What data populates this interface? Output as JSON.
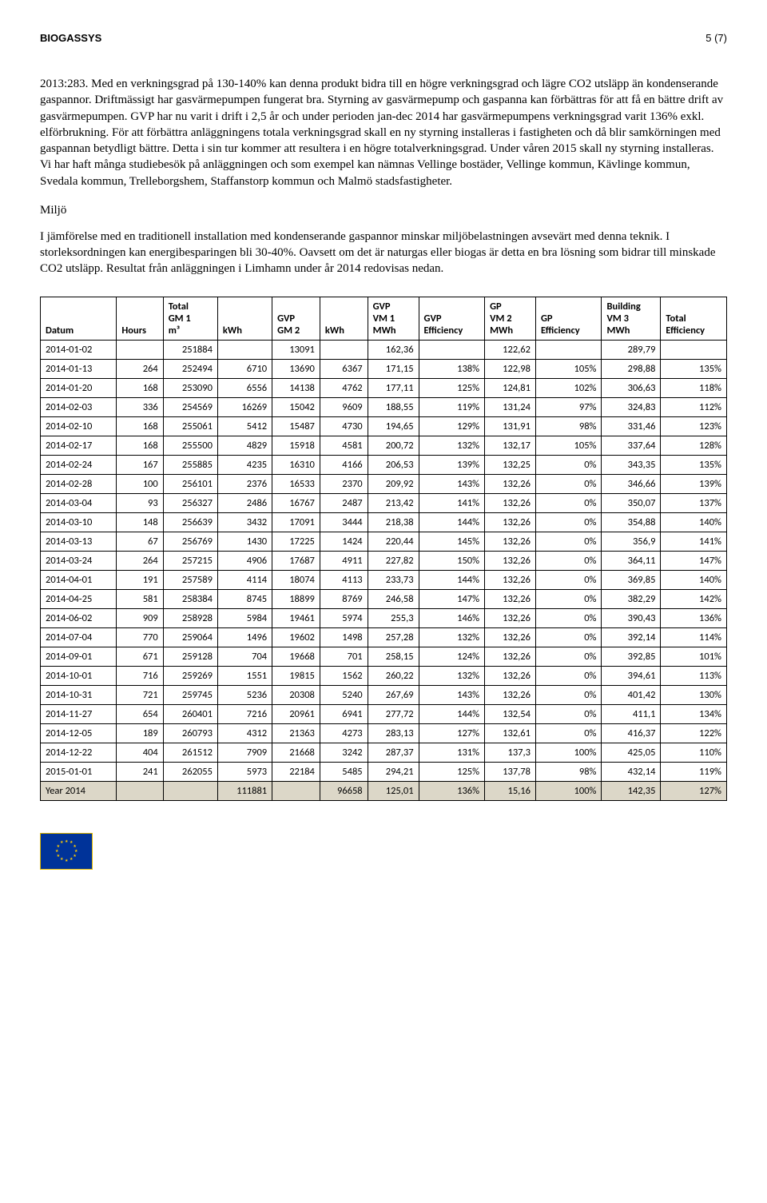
{
  "header": {
    "left": "BIOGASSYS",
    "right": "5 (7)"
  },
  "para1": "2013:283. Med en verkningsgrad på 130-140% kan denna produkt bidra till en högre verkningsgrad och lägre CO2 utsläpp än kondenserande gaspannor. Driftmässigt har gasvärmepumpen fungerat bra. Styrning av gasvärmepump och gaspanna kan förbättras för att få en bättre drift av gasvärmepumpen. GVP har nu varit i drift i 2,5 år och under perioden jan-dec 2014 har gasvärmepumpens verkningsgrad varit 136% exkl. elförbrukning. För att förbättra anläggningens totala verkningsgrad skall en ny styrning installeras i fastigheten och då blir samkörningen med gaspannan betydligt bättre. Detta i sin tur kommer att resultera i en högre totalverkningsgrad. Under våren 2015 skall ny styrning installeras. Vi har haft många studiebesök på anläggningen och som exempel kan nämnas Vellinge bostäder, Vellinge kommun, Kävlinge kommun, Svedala kommun, Trelleborgshem, Staffanstorp kommun och Malmö stadsfastigheter.",
  "section": "Miljö",
  "para2": "I jämförelse med en traditionell installation med kondenserande gaspannor minskar miljöbelastningen avsevärt med denna teknik. I storleksordningen kan energibesparingen bli 30-40%. Oavsett om det är naturgas eller biogas är detta en bra lösning som bidrar till minskade CO2 utsläpp. Resultat från anläggningen i Limhamn under år 2014 redovisas nedan.",
  "table": {
    "columns": [
      "Datum",
      "Hours",
      "Total\nGM 1\nm³",
      "kWh",
      "GVP\nGM 2",
      "kWh",
      "GVP\nVM 1\nMWh",
      "GVP\nEfficiency",
      "GP\nVM 2\nMWh",
      "GP\nEfficiency",
      "Building\nVM 3\nMWh",
      "Total\nEfficiency"
    ],
    "rows": [
      [
        "2014-01-02",
        "",
        "251884",
        "",
        "13091",
        "",
        "162,36",
        "",
        "122,62",
        "",
        "289,79",
        ""
      ],
      [
        "2014-01-13",
        "264",
        "252494",
        "6710",
        "13690",
        "6367",
        "171,15",
        "138%",
        "122,98",
        "105%",
        "298,88",
        "135%"
      ],
      [
        "2014-01-20",
        "168",
        "253090",
        "6556",
        "14138",
        "4762",
        "177,11",
        "125%",
        "124,81",
        "102%",
        "306,63",
        "118%"
      ],
      [
        "2014-02-03",
        "336",
        "254569",
        "16269",
        "15042",
        "9609",
        "188,55",
        "119%",
        "131,24",
        "97%",
        "324,83",
        "112%"
      ],
      [
        "2014-02-10",
        "168",
        "255061",
        "5412",
        "15487",
        "4730",
        "194,65",
        "129%",
        "131,91",
        "98%",
        "331,46",
        "123%"
      ],
      [
        "2014-02-17",
        "168",
        "255500",
        "4829",
        "15918",
        "4581",
        "200,72",
        "132%",
        "132,17",
        "105%",
        "337,64",
        "128%"
      ],
      [
        "2014-02-24",
        "167",
        "255885",
        "4235",
        "16310",
        "4166",
        "206,53",
        "139%",
        "132,25",
        "0%",
        "343,35",
        "135%"
      ],
      [
        "2014-02-28",
        "100",
        "256101",
        "2376",
        "16533",
        "2370",
        "209,92",
        "143%",
        "132,26",
        "0%",
        "346,66",
        "139%"
      ],
      [
        "2014-03-04",
        "93",
        "256327",
        "2486",
        "16767",
        "2487",
        "213,42",
        "141%",
        "132,26",
        "0%",
        "350,07",
        "137%"
      ],
      [
        "2014-03-10",
        "148",
        "256639",
        "3432",
        "17091",
        "3444",
        "218,38",
        "144%",
        "132,26",
        "0%",
        "354,88",
        "140%"
      ],
      [
        "2014-03-13",
        "67",
        "256769",
        "1430",
        "17225",
        "1424",
        "220,44",
        "145%",
        "132,26",
        "0%",
        "356,9",
        "141%"
      ],
      [
        "2014-03-24",
        "264",
        "257215",
        "4906",
        "17687",
        "4911",
        "227,82",
        "150%",
        "132,26",
        "0%",
        "364,11",
        "147%"
      ],
      [
        "2014-04-01",
        "191",
        "257589",
        "4114",
        "18074",
        "4113",
        "233,73",
        "144%",
        "132,26",
        "0%",
        "369,85",
        "140%"
      ],
      [
        "2014-04-25",
        "581",
        "258384",
        "8745",
        "18899",
        "8769",
        "246,58",
        "147%",
        "132,26",
        "0%",
        "382,29",
        "142%"
      ],
      [
        "2014-06-02",
        "909",
        "258928",
        "5984",
        "19461",
        "5974",
        "255,3",
        "146%",
        "132,26",
        "0%",
        "390,43",
        "136%"
      ],
      [
        "2014-07-04",
        "770",
        "259064",
        "1496",
        "19602",
        "1498",
        "257,28",
        "132%",
        "132,26",
        "0%",
        "392,14",
        "114%"
      ],
      [
        "2014-09-01",
        "671",
        "259128",
        "704",
        "19668",
        "701",
        "258,15",
        "124%",
        "132,26",
        "0%",
        "392,85",
        "101%"
      ],
      [
        "2014-10-01",
        "716",
        "259269",
        "1551",
        "19815",
        "1562",
        "260,22",
        "132%",
        "132,26",
        "0%",
        "394,61",
        "113%"
      ],
      [
        "2014-10-31",
        "721",
        "259745",
        "5236",
        "20308",
        "5240",
        "267,69",
        "143%",
        "132,26",
        "0%",
        "401,42",
        "130%"
      ],
      [
        "2014-11-27",
        "654",
        "260401",
        "7216",
        "20961",
        "6941",
        "277,72",
        "144%",
        "132,54",
        "0%",
        "411,1",
        "134%"
      ],
      [
        "2014-12-05",
        "189",
        "260793",
        "4312",
        "21363",
        "4273",
        "283,13",
        "127%",
        "132,61",
        "0%",
        "416,37",
        "122%"
      ],
      [
        "2014-12-22",
        "404",
        "261512",
        "7909",
        "21668",
        "3242",
        "287,37",
        "131%",
        "137,3",
        "100%",
        "425,05",
        "110%"
      ],
      [
        "2015-01-01",
        "241",
        "262055",
        "5973",
        "22184",
        "5485",
        "294,21",
        "125%",
        "137,78",
        "98%",
        "432,14",
        "119%"
      ]
    ],
    "summary": [
      "Year 2014",
      "",
      "",
      "111881",
      "",
      "96658",
      "125,01",
      "136%",
      "15,16",
      "100%",
      "142,35",
      "127%"
    ]
  },
  "style": {
    "body_font": "Georgia",
    "table_font": "Calibri",
    "summary_bg": "#dcd7c8",
    "border_color": "#000000",
    "flag_bg": "#003399",
    "flag_star": "#ffcc00"
  }
}
